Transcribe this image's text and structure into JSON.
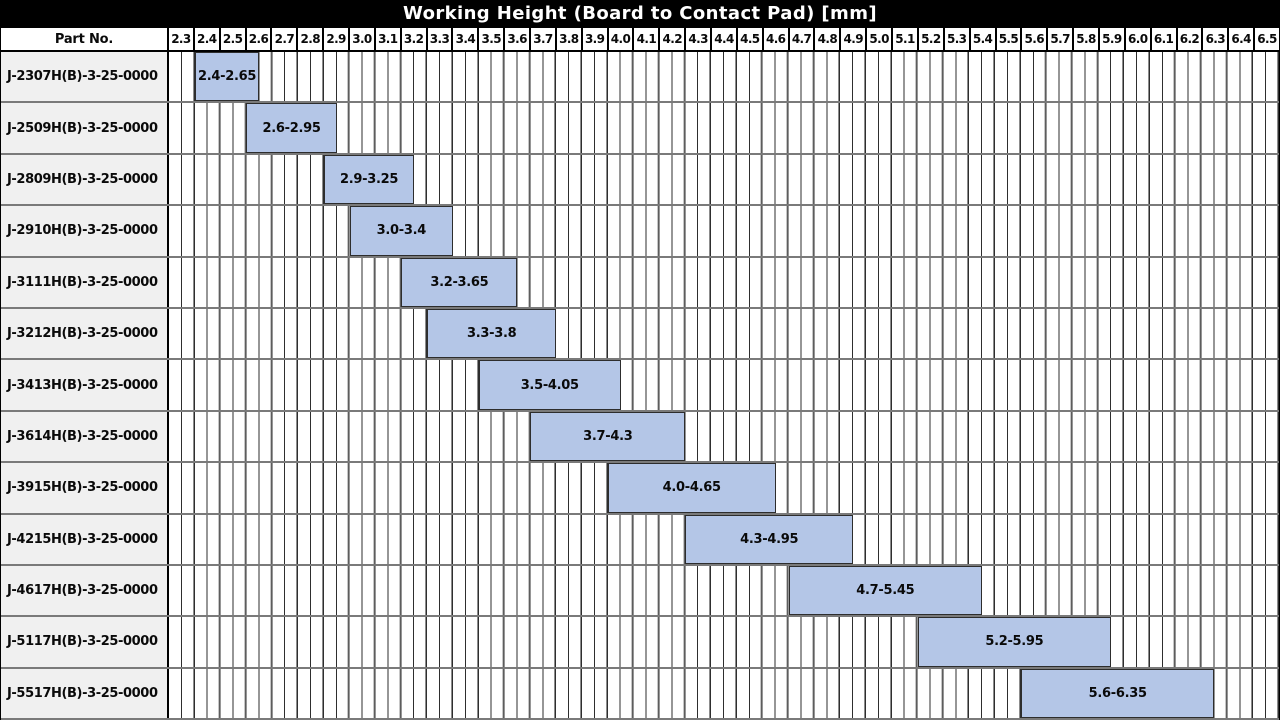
{
  "title": "Working Height (Board to Contact Pad) [mm]",
  "header": {
    "part_no_label": "Part No."
  },
  "chart_data": {
    "type": "bar",
    "subtype": "range-gantt",
    "title": "Working Height (Board to Contact Pad) [mm]",
    "x_axis": {
      "min": 2.3,
      "max": 6.6,
      "tick_step": 0.1,
      "minor_step": 0.05,
      "tick_labels": [
        "2.3",
        "2.4",
        "2.5",
        "2.6",
        "2.7",
        "2.8",
        "2.9",
        "3.0",
        "3.1",
        "3.2",
        "3.3",
        "3.4",
        "3.5",
        "3.6",
        "3.7",
        "3.8",
        "3.9",
        "4.0",
        "4.1",
        "4.2",
        "4.3",
        "4.4",
        "4.5",
        "4.6",
        "4.7",
        "4.8",
        "4.9",
        "5.0",
        "5.1",
        "5.2",
        "5.3",
        "5.4",
        "5.5",
        "5.6",
        "5.7",
        "5.8",
        "5.9",
        "6.0",
        "6.1",
        "6.2",
        "6.3",
        "6.4",
        "6.5"
      ],
      "grid": true
    },
    "rows": [
      {
        "part_no": "J-2307H(B)-3-25-0000",
        "start": 2.4,
        "end": 2.65,
        "range_label": "2.4-2.65"
      },
      {
        "part_no": "J-2509H(B)-3-25-0000",
        "start": 2.6,
        "end": 2.95,
        "range_label": "2.6-2.95"
      },
      {
        "part_no": "J-2809H(B)-3-25-0000",
        "start": 2.9,
        "end": 3.25,
        "range_label": "2.9-3.25"
      },
      {
        "part_no": "J-2910H(B)-3-25-0000",
        "start": 3.0,
        "end": 3.4,
        "range_label": "3.0-3.4"
      },
      {
        "part_no": "J-3111H(B)-3-25-0000",
        "start": 3.2,
        "end": 3.65,
        "range_label": "3.2-3.65"
      },
      {
        "part_no": "J-3212H(B)-3-25-0000",
        "start": 3.3,
        "end": 3.8,
        "range_label": "3.3-3.8"
      },
      {
        "part_no": "J-3413H(B)-3-25-0000",
        "start": 3.5,
        "end": 4.05,
        "range_label": "3.5-4.05"
      },
      {
        "part_no": "J-3614H(B)-3-25-0000",
        "start": 3.7,
        "end": 4.3,
        "range_label": "3.7-4.3"
      },
      {
        "part_no": "J-3915H(B)-3-25-0000",
        "start": 4.0,
        "end": 4.65,
        "range_label": "4.0-4.65"
      },
      {
        "part_no": "J-4215H(B)-3-25-0000",
        "start": 4.3,
        "end": 4.95,
        "range_label": "4.3-4.95"
      },
      {
        "part_no": "J-4617H(B)-3-25-0000",
        "start": 4.7,
        "end": 5.45,
        "range_label": "4.7-5.45"
      },
      {
        "part_no": "J-5117H(B)-3-25-0000",
        "start": 5.2,
        "end": 5.95,
        "range_label": "5.2-5.95"
      },
      {
        "part_no": "J-5517H(B)-3-25-0000",
        "start": 5.6,
        "end": 6.35,
        "range_label": "5.6-6.35"
      }
    ]
  },
  "colors": {
    "title_bg": "#000000",
    "title_fg": "#ffffff",
    "bar_fill": "#b4c6e7",
    "bar_border": "#2d2d2d",
    "part_col_bg": "#f0f0f0",
    "row_border": "#7a7a7a",
    "grid_minor": "#2e2e2e",
    "grid_major": "#8c8c8c"
  }
}
